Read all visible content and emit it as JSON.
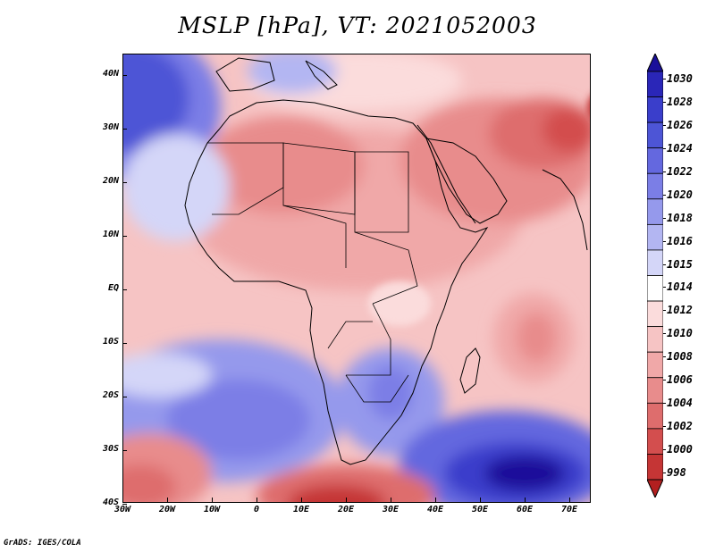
{
  "title": "MSLP [hPa], VT: 2021052003",
  "latitude_labels": [
    "40N",
    "30N",
    "20N",
    "10N",
    "EQ",
    "10S",
    "20S",
    "30S",
    "40S"
  ],
  "longitude_labels": [
    "30W",
    "20W",
    "10W",
    "0",
    "10E",
    "20E",
    "30E",
    "40E",
    "50E",
    "60E",
    "70E"
  ],
  "colorbar": {
    "levels": [
      "1030",
      "1028",
      "1026",
      "1024",
      "1022",
      "1020",
      "1018",
      "1016",
      "1015",
      "1014",
      "1012",
      "1010",
      "1008",
      "1006",
      "1004",
      "1002",
      "1000",
      "998"
    ],
    "colors": [
      "#1a0f9a",
      "#2a26b8",
      "#3a3ecb",
      "#4d55d6",
      "#6468df",
      "#7b7ee6",
      "#9599ec",
      "#b3b6f2",
      "#d4d6f8",
      "#ffffff",
      "#fbdcdc",
      "#f6c4c4",
      "#f0a8a8",
      "#e88c8c",
      "#de6d6d",
      "#d34e4e",
      "#c53535",
      "#b21f1f"
    ]
  },
  "map_fields": {
    "background": "#f6c4c4",
    "regions": [
      {
        "name": "north-atlantic-high",
        "color": "#4d55d6"
      },
      {
        "name": "south-atlantic-high",
        "color": "#7b7ee6"
      },
      {
        "name": "southern-indian-high",
        "color": "#2a26b8"
      },
      {
        "name": "saharan-low",
        "color": "#e88c8c"
      },
      {
        "name": "arabian-low",
        "color": "#de6d6d"
      },
      {
        "name": "southern-ocean-low",
        "color": "#d34e4e"
      }
    ]
  },
  "credit": "GrADS: IGES/COLA"
}
